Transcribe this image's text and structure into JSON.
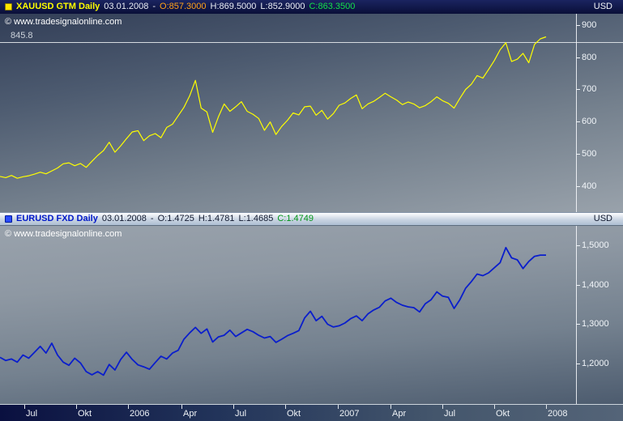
{
  "panels": [
    {
      "id": "xauusd",
      "header": {
        "symbol": "XAUUSD GTM Daily",
        "date": "03.01.2008",
        "separator": "-",
        "open": "O:857.3000",
        "high": "H:869.5000",
        "low": "L:852.9000",
        "close": "C:863.3500",
        "currency": "USD"
      },
      "watermark": "© www.tradesignalonline.com",
      "hline_label": "845.8"
    },
    {
      "id": "eurusd",
      "header": {
        "symbol": "EURUSD FXD Daily",
        "date": "03.01.2008",
        "separator": "-",
        "open": "O:1.4725",
        "high": "H:1.4781",
        "low": "L:1.4685",
        "close": "C:1.4749",
        "currency": "USD"
      },
      "watermark": "© www.tradesignalonline.com"
    }
  ],
  "time_axis": {
    "ticks": [
      {
        "label": "Jul",
        "pos": 0.042
      },
      {
        "label": "Okt",
        "pos": 0.132
      },
      {
        "label": "2006",
        "pos": 0.222
      },
      {
        "label": "Apr",
        "pos": 0.315
      },
      {
        "label": "Jul",
        "pos": 0.405
      },
      {
        "label": "Okt",
        "pos": 0.495
      },
      {
        "label": "2007",
        "pos": 0.587
      },
      {
        "label": "Apr",
        "pos": 0.678
      },
      {
        "label": "Jul",
        "pos": 0.768
      },
      {
        "label": "Okt",
        "pos": 0.858
      },
      {
        "label": "2008",
        "pos": 0.948
      }
    ]
  },
  "chart_data": [
    {
      "id": "xauusd",
      "type": "line",
      "title": "XAUUSD GTM Daily",
      "color": "#ffff00",
      "stroke_width": 1.2,
      "x_axis_labels": [
        "Jul",
        "Okt",
        "2006",
        "Apr",
        "Jul",
        "Okt",
        "2007",
        "Apr",
        "Jul",
        "Okt",
        "2008"
      ],
      "x_end_frac": 0.948,
      "ylim": [
        319,
        935
      ],
      "y_axis": {
        "top_value": 935,
        "bottom_value": 319,
        "ticks": [
          {
            "label": "900",
            "value": 900
          },
          {
            "label": "800",
            "value": 800
          },
          {
            "label": "700",
            "value": 700
          },
          {
            "label": "600",
            "value": 600
          },
          {
            "label": "500",
            "value": 500
          },
          {
            "label": "400",
            "value": 400
          }
        ]
      },
      "hline": {
        "value": 845.8,
        "label": "845.8",
        "color": "#d6dbe0"
      },
      "series": [
        {
          "name": "XAUUSD",
          "values": [
            430,
            426,
            433,
            424,
            429,
            432,
            437,
            443,
            438,
            447,
            456,
            469,
            472,
            463,
            470,
            458,
            477,
            495,
            510,
            536,
            505,
            525,
            547,
            568,
            572,
            541,
            556,
            563,
            550,
            582,
            592,
            618,
            644,
            680,
            728,
            642,
            630,
            567,
            615,
            655,
            632,
            646,
            662,
            632,
            623,
            610,
            573,
            599,
            560,
            585,
            604,
            627,
            621,
            646,
            648,
            620,
            635,
            608,
            625,
            651,
            658,
            672,
            683,
            640,
            655,
            663,
            675,
            688,
            677,
            667,
            653,
            661,
            655,
            643,
            650,
            662,
            677,
            665,
            657,
            642,
            672,
            700,
            716,
            743,
            735,
            762,
            790,
            823,
            845,
            787,
            794,
            812,
            783,
            840,
            857,
            863.35
          ]
        }
      ]
    },
    {
      "id": "eurusd",
      "type": "line",
      "title": "EURUSD FXD Daily",
      "color": "#0a1ecc",
      "stroke_width": 1.8,
      "x_axis_labels": [
        "Jul",
        "Okt",
        "2006",
        "Apr",
        "Jul",
        "Okt",
        "2007",
        "Apr",
        "Jul",
        "Okt",
        "2008"
      ],
      "x_end_frac": 0.948,
      "ylim": [
        1.098,
        1.549
      ],
      "y_axis": {
        "top_value": 1.549,
        "bottom_value": 1.098,
        "ticks": [
          {
            "label": "1,5000",
            "value": 1.5
          },
          {
            "label": "1,4000",
            "value": 1.4
          },
          {
            "label": "1,3000",
            "value": 1.3
          },
          {
            "label": "1,2000",
            "value": 1.2
          }
        ]
      },
      "series": [
        {
          "name": "EURUSD",
          "values": [
            1.216,
            1.208,
            1.212,
            1.204,
            1.222,
            1.214,
            1.229,
            1.244,
            1.227,
            1.252,
            1.222,
            1.204,
            1.196,
            1.214,
            1.202,
            1.18,
            1.172,
            1.18,
            1.171,
            1.198,
            1.184,
            1.211,
            1.229,
            1.211,
            1.197,
            1.192,
            1.186,
            1.203,
            1.219,
            1.212,
            1.227,
            1.234,
            1.262,
            1.278,
            1.292,
            1.277,
            1.288,
            1.255,
            1.268,
            1.272,
            1.285,
            1.269,
            1.278,
            1.287,
            1.281,
            1.272,
            1.265,
            1.269,
            1.254,
            1.262,
            1.271,
            1.277,
            1.284,
            1.316,
            1.333,
            1.309,
            1.32,
            1.3,
            1.293,
            1.296,
            1.303,
            1.314,
            1.321,
            1.309,
            1.326,
            1.336,
            1.343,
            1.359,
            1.366,
            1.355,
            1.348,
            1.344,
            1.342,
            1.331,
            1.352,
            1.362,
            1.382,
            1.371,
            1.368,
            1.34,
            1.362,
            1.391,
            1.408,
            1.427,
            1.423,
            1.43,
            1.443,
            1.456,
            1.494,
            1.468,
            1.463,
            1.441,
            1.459,
            1.472,
            1.475,
            1.4749
          ]
        }
      ]
    }
  ]
}
